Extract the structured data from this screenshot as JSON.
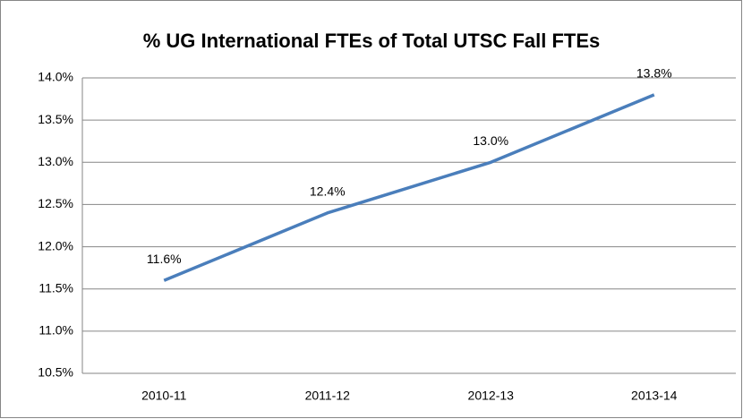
{
  "chart_data": {
    "type": "line",
    "title": "% UG International FTEs of Total UTSC Fall FTEs",
    "categories": [
      "2010-11",
      "2011-12",
      "2012-13",
      "2013-14"
    ],
    "series": [
      {
        "name": "% UG International FTEs",
        "color": "#4a7ebb",
        "values": [
          11.6,
          12.4,
          13.0,
          13.8
        ],
        "value_labels": [
          "11.6%",
          "12.4%",
          "13.0%",
          "13.8%"
        ]
      }
    ],
    "ylim": [
      10.5,
      14.0
    ],
    "yticks": [
      {
        "value": 10.5,
        "label": "10.5%"
      },
      {
        "value": 11.0,
        "label": "11.0%"
      },
      {
        "value": 11.5,
        "label": "11.5%"
      },
      {
        "value": 12.0,
        "label": "12.0%"
      },
      {
        "value": 12.5,
        "label": "12.5%"
      },
      {
        "value": 13.0,
        "label": "13.0%"
      },
      {
        "value": 13.5,
        "label": "13.5%"
      },
      {
        "value": 14.0,
        "label": "14.0%"
      }
    ],
    "grid": true
  }
}
